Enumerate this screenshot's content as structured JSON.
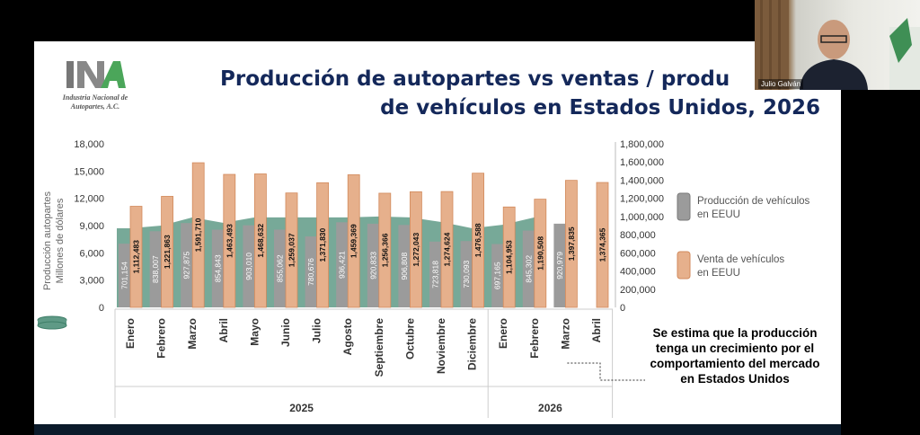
{
  "slide": {
    "title_line1": "Producción de autopartes vs ventas / produ",
    "title_line2": "de vehículos en Estados Unidos, 2026",
    "logo_text": "Industria Nacional de Autopartes, A.C.",
    "note": "Se estima que la producción tenga un crecimiento por el comportamiento del mercado en Estados Unidos"
  },
  "video": {
    "participant_name": "Julio Galván"
  },
  "colors": {
    "area": "#5f9a86",
    "production_bar": "#9b9b9b",
    "sales_bar": "#e6b08c",
    "sales_bar_border": "#d28a5c",
    "title": "#14285a"
  },
  "chart_data": {
    "type": "bar",
    "title": "Producción de autopartes vs ventas / producción de vehículos en Estados Unidos, 2026",
    "left_axis": {
      "label_line1": "Producción autopartes",
      "label_line2": "Millones de dólares",
      "ylim": [
        0,
        18000
      ],
      "ticks": [
        "0",
        "3,000",
        "6,000",
        "9,000",
        "12,000",
        "15,000",
        "18,000"
      ]
    },
    "right_axis": {
      "ylim": [
        0,
        1800000
      ],
      "ticks": [
        "0",
        "200,000",
        "400,000",
        "600,000",
        "800,000",
        "1,000,000",
        "1,200,000",
        "1,400,000",
        "1,600,000",
        "1,800,000"
      ]
    },
    "categories": [
      "Enero",
      "Febrero",
      "Marzo",
      "Abril",
      "Mayo",
      "Junio",
      "Julio",
      "Agosto",
      "Septiembre",
      "Octubre",
      "Noviembre",
      "Diciembre",
      "Enero",
      "Febrero",
      "Marzo",
      "Abril"
    ],
    "groups": [
      {
        "label": "2025",
        "count": 12
      },
      {
        "label": "2026",
        "count": 4
      }
    ],
    "series": [
      {
        "name": "Producción de vehículos en EEUU",
        "axis": "right",
        "values": [
          701154,
          838007,
          927875,
          854843,
          903010,
          855062,
          780676,
          936421,
          920833,
          906808,
          723818,
          730093,
          697165,
          845302,
          920979,
          null
        ],
        "labels": [
          "701,154",
          "838,007",
          "927,875",
          "854,843",
          "903,010",
          "855,062",
          "780,676",
          "936,421",
          "920,833",
          "906,808",
          "723,818",
          "730,093",
          "697,165",
          "845,302",
          "920,979",
          ""
        ]
      },
      {
        "name": "Venta de vehículos en EEUU",
        "axis": "right",
        "values": [
          1112483,
          1221863,
          1591710,
          1463493,
          1468632,
          1259037,
          1371830,
          1459369,
          1256366,
          1272043,
          1274624,
          1476588,
          1104953,
          1190508,
          1397835,
          1374365
        ],
        "labels": [
          "1,112,483",
          "1,221,863",
          "1,591,710",
          "1,463,493",
          "1,468,632",
          "1,259,037",
          "1,371,830",
          "1,459,369",
          "1,256,366",
          "1,272,043",
          "1,274,624",
          "1,476,588",
          "1,104,953",
          "1,190,508",
          "1,397,835",
          "1,374,365"
        ]
      },
      {
        "name": "Producción autopartes",
        "axis": "left",
        "type": "area",
        "values": [
          8700,
          9000,
          9900,
          9300,
          9900,
          9900,
          9900,
          9900,
          10000,
          9900,
          9400,
          8700,
          9100,
          9900,
          null,
          null
        ]
      }
    ],
    "legend": [
      {
        "label_line1": "Producción de vehículos",
        "label_line2": "en EEUU"
      },
      {
        "label_line1": "Venta de vehículos",
        "label_line2": "en EEUU"
      }
    ],
    "legend_position": "right"
  }
}
